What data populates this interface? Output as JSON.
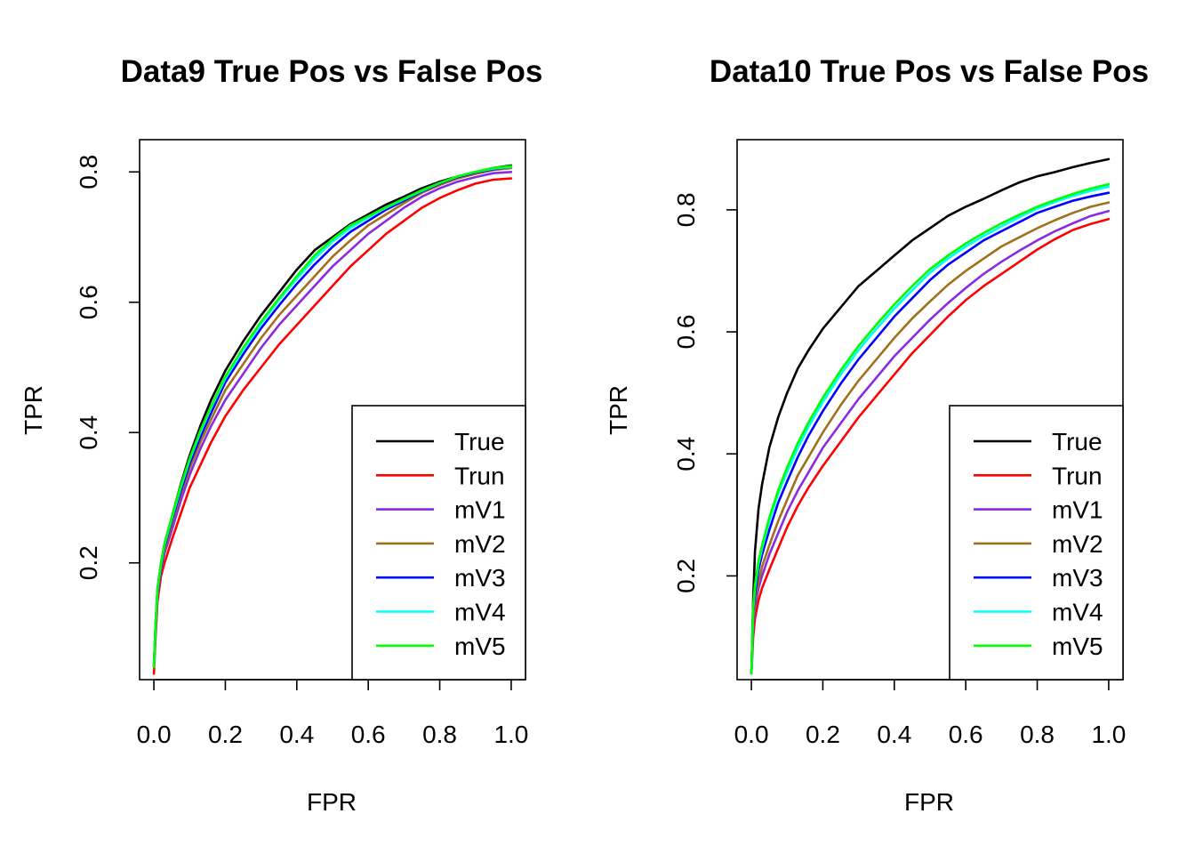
{
  "chart_data": [
    {
      "type": "line",
      "title": "Data9 True Pos vs False Pos",
      "xlabel": "FPR",
      "ylabel": "TPR",
      "xlim": [
        -0.04,
        1.04
      ],
      "ylim": [
        0.0208,
        0.8495
      ],
      "xticks": [
        0.0,
        0.2,
        0.4,
        0.6,
        0.8,
        1.0
      ],
      "yticks": [
        0.2,
        0.4,
        0.6,
        0.8
      ],
      "xtick_labels": [
        "0.0",
        "0.2",
        "0.4",
        "0.6",
        "0.8",
        "1.0"
      ],
      "ytick_labels": [
        "0.2",
        "0.4",
        "0.6",
        "0.8"
      ],
      "legend_position": "bottom-right",
      "grid": false,
      "series": [
        {
          "name": "True",
          "color": "#000000",
          "x": [
            0,
            0.005,
            0.01,
            0.02,
            0.03,
            0.05,
            0.075,
            0.1,
            0.13,
            0.16,
            0.2,
            0.25,
            0.3,
            0.35,
            0.4,
            0.45,
            0.5,
            0.55,
            0.6,
            0.65,
            0.7,
            0.75,
            0.8,
            0.85,
            0.9,
            0.95,
            1.0
          ],
          "y": [
            0.04,
            0.11,
            0.16,
            0.2,
            0.23,
            0.27,
            0.32,
            0.365,
            0.41,
            0.45,
            0.495,
            0.54,
            0.58,
            0.615,
            0.65,
            0.68,
            0.7,
            0.72,
            0.735,
            0.75,
            0.762,
            0.775,
            0.785,
            0.793,
            0.8,
            0.806,
            0.81
          ]
        },
        {
          "name": "Trun",
          "color": "#ff0000",
          "x": [
            0,
            0.005,
            0.01,
            0.02,
            0.03,
            0.05,
            0.075,
            0.1,
            0.13,
            0.16,
            0.2,
            0.25,
            0.3,
            0.35,
            0.4,
            0.45,
            0.5,
            0.55,
            0.6,
            0.65,
            0.7,
            0.75,
            0.8,
            0.85,
            0.9,
            0.95,
            1.0
          ],
          "y": [
            0.03,
            0.09,
            0.14,
            0.18,
            0.2,
            0.235,
            0.275,
            0.315,
            0.35,
            0.385,
            0.425,
            0.465,
            0.5,
            0.535,
            0.565,
            0.595,
            0.625,
            0.655,
            0.68,
            0.705,
            0.725,
            0.745,
            0.76,
            0.772,
            0.782,
            0.788,
            0.79
          ]
        },
        {
          "name": "mV1",
          "color": "#8a2be2",
          "x": [
            0,
            0.005,
            0.01,
            0.02,
            0.03,
            0.05,
            0.075,
            0.1,
            0.13,
            0.16,
            0.2,
            0.25,
            0.3,
            0.35,
            0.4,
            0.45,
            0.5,
            0.55,
            0.6,
            0.65,
            0.7,
            0.75,
            0.8,
            0.85,
            0.9,
            0.95,
            1.0
          ],
          "y": [
            0.04,
            0.1,
            0.15,
            0.19,
            0.215,
            0.25,
            0.295,
            0.335,
            0.375,
            0.41,
            0.45,
            0.49,
            0.53,
            0.565,
            0.595,
            0.625,
            0.655,
            0.68,
            0.705,
            0.725,
            0.745,
            0.762,
            0.775,
            0.785,
            0.792,
            0.798,
            0.8
          ]
        },
        {
          "name": "mV2",
          "color": "#a0701a",
          "x": [
            0,
            0.005,
            0.01,
            0.02,
            0.03,
            0.05,
            0.075,
            0.1,
            0.13,
            0.16,
            0.2,
            0.25,
            0.3,
            0.35,
            0.4,
            0.45,
            0.5,
            0.55,
            0.6,
            0.65,
            0.7,
            0.75,
            0.8,
            0.85,
            0.9,
            0.95,
            1.0
          ],
          "y": [
            0.04,
            0.105,
            0.155,
            0.195,
            0.22,
            0.26,
            0.305,
            0.345,
            0.385,
            0.42,
            0.465,
            0.505,
            0.545,
            0.58,
            0.61,
            0.64,
            0.67,
            0.695,
            0.718,
            0.735,
            0.752,
            0.768,
            0.78,
            0.79,
            0.797,
            0.803,
            0.806
          ]
        },
        {
          "name": "mV3",
          "color": "#0000ff",
          "x": [
            0,
            0.005,
            0.01,
            0.02,
            0.03,
            0.05,
            0.075,
            0.1,
            0.13,
            0.16,
            0.2,
            0.25,
            0.3,
            0.35,
            0.4,
            0.45,
            0.5,
            0.55,
            0.6,
            0.65,
            0.7,
            0.75,
            0.8,
            0.85,
            0.9,
            0.95,
            1.0
          ],
          "y": [
            0.045,
            0.105,
            0.155,
            0.195,
            0.225,
            0.265,
            0.31,
            0.352,
            0.393,
            0.43,
            0.477,
            0.52,
            0.56,
            0.595,
            0.628,
            0.658,
            0.685,
            0.708,
            0.725,
            0.742,
            0.756,
            0.77,
            0.782,
            0.792,
            0.799,
            0.804,
            0.808
          ]
        },
        {
          "name": "mV4",
          "color": "#00ffff",
          "x": [
            0,
            0.005,
            0.01,
            0.02,
            0.03,
            0.05,
            0.075,
            0.1,
            0.13,
            0.16,
            0.2,
            0.25,
            0.3,
            0.35,
            0.4,
            0.45,
            0.5,
            0.55,
            0.6,
            0.65,
            0.7,
            0.75,
            0.8,
            0.85,
            0.9,
            0.95,
            1.0
          ],
          "y": [
            0.04,
            0.108,
            0.158,
            0.198,
            0.228,
            0.268,
            0.315,
            0.358,
            0.4,
            0.438,
            0.483,
            0.527,
            0.567,
            0.603,
            0.636,
            0.667,
            0.693,
            0.714,
            0.73,
            0.745,
            0.758,
            0.771,
            0.783,
            0.793,
            0.8,
            0.805,
            0.808
          ]
        },
        {
          "name": "mV5",
          "color": "#00ff00",
          "x": [
            0,
            0.005,
            0.01,
            0.02,
            0.03,
            0.05,
            0.075,
            0.1,
            0.13,
            0.16,
            0.2,
            0.25,
            0.3,
            0.35,
            0.4,
            0.45,
            0.5,
            0.55,
            0.6,
            0.65,
            0.7,
            0.75,
            0.8,
            0.85,
            0.9,
            0.95,
            1.0
          ],
          "y": [
            0.04,
            0.108,
            0.158,
            0.2,
            0.23,
            0.27,
            0.318,
            0.36,
            0.403,
            0.44,
            0.486,
            0.53,
            0.57,
            0.606,
            0.64,
            0.672,
            0.697,
            0.718,
            0.732,
            0.746,
            0.759,
            0.772,
            0.783,
            0.793,
            0.8,
            0.806,
            0.809
          ]
        }
      ]
    },
    {
      "type": "line",
      "title": "Data10 True Pos vs False Pos",
      "xlabel": "FPR",
      "ylabel": "TPR",
      "xlim": [
        -0.04,
        1.04
      ],
      "ylim": [
        0.03,
        0.915
      ],
      "xticks": [
        0.0,
        0.2,
        0.4,
        0.6,
        0.8,
        1.0
      ],
      "yticks": [
        0.2,
        0.4,
        0.6,
        0.8
      ],
      "xtick_labels": [
        "0.0",
        "0.2",
        "0.4",
        "0.6",
        "0.8",
        "1.0"
      ],
      "ytick_labels": [
        "0.2",
        "0.4",
        "0.6",
        "0.8"
      ],
      "legend_position": "bottom-right",
      "grid": false,
      "series": [
        {
          "name": "True",
          "color": "#000000",
          "x": [
            0,
            0.005,
            0.01,
            0.02,
            0.03,
            0.05,
            0.075,
            0.1,
            0.13,
            0.16,
            0.2,
            0.25,
            0.3,
            0.35,
            0.4,
            0.45,
            0.5,
            0.55,
            0.6,
            0.65,
            0.7,
            0.75,
            0.8,
            0.85,
            0.9,
            0.95,
            1.0
          ],
          "y": [
            0.04,
            0.16,
            0.24,
            0.31,
            0.35,
            0.41,
            0.46,
            0.5,
            0.54,
            0.57,
            0.605,
            0.64,
            0.675,
            0.7,
            0.725,
            0.75,
            0.77,
            0.79,
            0.805,
            0.818,
            0.832,
            0.845,
            0.855,
            0.862,
            0.87,
            0.877,
            0.883
          ]
        },
        {
          "name": "Trun",
          "color": "#ff0000",
          "x": [
            0,
            0.005,
            0.01,
            0.02,
            0.03,
            0.05,
            0.075,
            0.1,
            0.13,
            0.16,
            0.2,
            0.25,
            0.3,
            0.35,
            0.4,
            0.45,
            0.5,
            0.55,
            0.6,
            0.65,
            0.7,
            0.75,
            0.8,
            0.85,
            0.9,
            0.95,
            1.0
          ],
          "y": [
            0.04,
            0.1,
            0.13,
            0.16,
            0.18,
            0.21,
            0.245,
            0.28,
            0.315,
            0.345,
            0.38,
            0.42,
            0.46,
            0.495,
            0.53,
            0.565,
            0.595,
            0.625,
            0.652,
            0.675,
            0.695,
            0.715,
            0.735,
            0.752,
            0.767,
            0.777,
            0.785
          ]
        },
        {
          "name": "mV1",
          "color": "#8a2be2",
          "x": [
            0,
            0.005,
            0.01,
            0.02,
            0.03,
            0.05,
            0.075,
            0.1,
            0.13,
            0.16,
            0.2,
            0.25,
            0.3,
            0.35,
            0.4,
            0.45,
            0.5,
            0.55,
            0.6,
            0.65,
            0.7,
            0.75,
            0.8,
            0.85,
            0.9,
            0.95,
            1.0
          ],
          "y": [
            0.04,
            0.12,
            0.15,
            0.18,
            0.2,
            0.235,
            0.27,
            0.305,
            0.34,
            0.37,
            0.41,
            0.45,
            0.49,
            0.525,
            0.56,
            0.59,
            0.62,
            0.647,
            0.672,
            0.695,
            0.715,
            0.733,
            0.75,
            0.765,
            0.778,
            0.79,
            0.798
          ]
        },
        {
          "name": "mV2",
          "color": "#a0701a",
          "x": [
            0,
            0.005,
            0.01,
            0.02,
            0.03,
            0.05,
            0.075,
            0.1,
            0.13,
            0.16,
            0.2,
            0.25,
            0.3,
            0.35,
            0.4,
            0.45,
            0.5,
            0.55,
            0.6,
            0.65,
            0.7,
            0.75,
            0.8,
            0.85,
            0.9,
            0.95,
            1.0
          ],
          "y": [
            0.04,
            0.13,
            0.16,
            0.19,
            0.215,
            0.25,
            0.29,
            0.325,
            0.365,
            0.395,
            0.435,
            0.48,
            0.52,
            0.555,
            0.59,
            0.622,
            0.65,
            0.677,
            0.7,
            0.72,
            0.74,
            0.755,
            0.77,
            0.783,
            0.795,
            0.805,
            0.812
          ]
        },
        {
          "name": "mV3",
          "color": "#0000ff",
          "x": [
            0,
            0.005,
            0.01,
            0.02,
            0.03,
            0.05,
            0.075,
            0.1,
            0.13,
            0.16,
            0.2,
            0.25,
            0.3,
            0.35,
            0.4,
            0.45,
            0.5,
            0.55,
            0.6,
            0.65,
            0.7,
            0.75,
            0.8,
            0.85,
            0.9,
            0.95,
            1.0
          ],
          "y": [
            0.04,
            0.14,
            0.17,
            0.21,
            0.235,
            0.275,
            0.32,
            0.355,
            0.395,
            0.43,
            0.47,
            0.515,
            0.555,
            0.59,
            0.625,
            0.655,
            0.685,
            0.71,
            0.73,
            0.75,
            0.765,
            0.78,
            0.795,
            0.805,
            0.815,
            0.822,
            0.828
          ]
        },
        {
          "name": "mV4",
          "color": "#00ffff",
          "x": [
            0,
            0.005,
            0.01,
            0.02,
            0.03,
            0.05,
            0.075,
            0.1,
            0.13,
            0.16,
            0.2,
            0.25,
            0.3,
            0.35,
            0.4,
            0.45,
            0.5,
            0.55,
            0.6,
            0.65,
            0.7,
            0.75,
            0.8,
            0.85,
            0.9,
            0.95,
            1.0
          ],
          "y": [
            0.04,
            0.145,
            0.18,
            0.22,
            0.245,
            0.29,
            0.335,
            0.37,
            0.41,
            0.445,
            0.485,
            0.53,
            0.57,
            0.605,
            0.638,
            0.668,
            0.697,
            0.72,
            0.74,
            0.757,
            0.773,
            0.788,
            0.802,
            0.813,
            0.823,
            0.831,
            0.838
          ]
        },
        {
          "name": "mV5",
          "color": "#00ff00",
          "x": [
            0,
            0.005,
            0.01,
            0.02,
            0.03,
            0.05,
            0.075,
            0.1,
            0.13,
            0.16,
            0.2,
            0.25,
            0.3,
            0.35,
            0.4,
            0.45,
            0.5,
            0.55,
            0.6,
            0.65,
            0.7,
            0.75,
            0.8,
            0.85,
            0.9,
            0.95,
            1.0
          ],
          "y": [
            0.04,
            0.15,
            0.185,
            0.225,
            0.25,
            0.295,
            0.34,
            0.378,
            0.418,
            0.452,
            0.492,
            0.537,
            0.577,
            0.612,
            0.645,
            0.675,
            0.703,
            0.725,
            0.745,
            0.762,
            0.778,
            0.792,
            0.805,
            0.816,
            0.826,
            0.835,
            0.842
          ]
        }
      ]
    }
  ]
}
